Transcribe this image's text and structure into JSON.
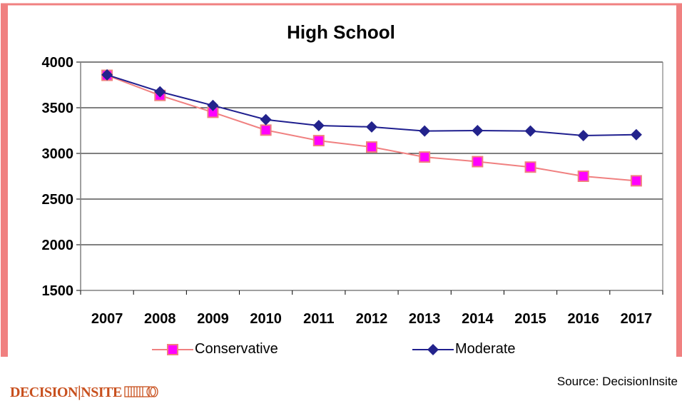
{
  "chart_data": {
    "type": "line",
    "title": "High School",
    "categories": [
      "2007",
      "2008",
      "2009",
      "2010",
      "2011",
      "2012",
      "2013",
      "2014",
      "2015",
      "2016",
      "2017"
    ],
    "ylim": [
      1500,
      4000
    ],
    "yticks": [
      1500,
      2000,
      2500,
      3000,
      3500,
      4000
    ],
    "grid": "horizontal",
    "legend": "bottom",
    "series": [
      {
        "name": "Conservative",
        "color": "#f08080",
        "marker": "square",
        "marker_color": "#ff00ff",
        "values": [
          3855,
          3635,
          3450,
          3255,
          3140,
          3070,
          2960,
          2910,
          2850,
          2750,
          2700
        ]
      },
      {
        "name": "Moderate",
        "color": "#1f1f8f",
        "marker": "diamond",
        "marker_color": "#23238c",
        "values": [
          3860,
          3675,
          3525,
          3370,
          3305,
          3290,
          3245,
          3250,
          3245,
          3195,
          3205
        ]
      }
    ]
  },
  "source": "Source:  DecisionInsite",
  "logo": {
    "text": "DECISION|NSITE",
    "icon": "decisioninsite-logo-mark"
  },
  "colors": {
    "frame": "#f08080",
    "gridline": "#000000"
  }
}
